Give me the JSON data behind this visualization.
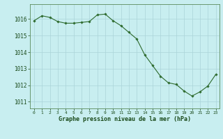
{
  "x": [
    0,
    1,
    2,
    3,
    4,
    5,
    6,
    7,
    8,
    9,
    10,
    11,
    12,
    13,
    14,
    15,
    16,
    17,
    18,
    19,
    20,
    21,
    22,
    23
  ],
  "y": [
    1015.9,
    1016.2,
    1016.1,
    1015.85,
    1015.75,
    1015.75,
    1015.8,
    1015.85,
    1016.25,
    1016.3,
    1015.9,
    1015.6,
    1015.2,
    1014.8,
    1013.85,
    1013.2,
    1012.55,
    1012.15,
    1012.05,
    1011.65,
    1011.35,
    1011.6,
    1011.95,
    1012.65
  ],
  "line_color": "#2d6a2d",
  "marker_color": "#2d6a2d",
  "bg_color": "#c8eef0",
  "grid_color": "#aad4d8",
  "xlabel": "Graphe pression niveau de la mer (hPa)",
  "xlabel_color": "#1a4a1a",
  "yticks": [
    1011,
    1012,
    1013,
    1014,
    1015,
    1016
  ],
  "xticks": [
    0,
    1,
    2,
    3,
    4,
    5,
    6,
    7,
    8,
    9,
    10,
    11,
    12,
    13,
    14,
    15,
    16,
    17,
    18,
    19,
    20,
    21,
    22,
    23
  ],
  "ylim": [
    1010.6,
    1016.9
  ],
  "xlim": [
    -0.5,
    23.5
  ],
  "tick_color": "#1a4a1a",
  "spine_color": "#5a8a5a",
  "figsize": [
    3.2,
    2.0
  ],
  "dpi": 100
}
